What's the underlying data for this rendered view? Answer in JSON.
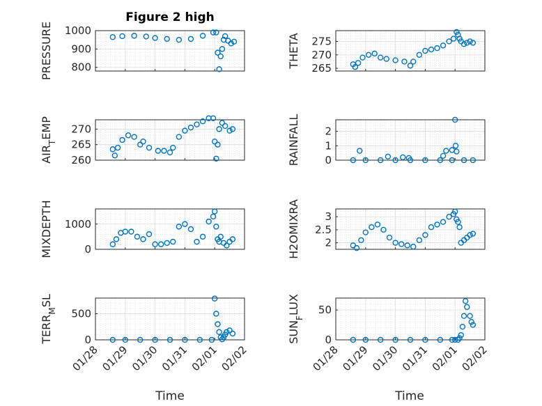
{
  "figure": {
    "title": "Figure 2 high",
    "xlabel": "Time",
    "x_ticks": [
      "01/28",
      "01/29",
      "01/30",
      "01/31",
      "02/01",
      "02/02"
    ],
    "marker_color": "#0072BD"
  },
  "chart_data": [
    {
      "type": "scatter",
      "ylabel": "PRESSURE",
      "ylim": [
        780,
        1000
      ],
      "yticks": [
        800,
        900,
        1000
      ],
      "grid": true,
      "x": [
        0.58,
        0.9,
        1.3,
        1.7,
        2.0,
        2.4,
        2.8,
        3.2,
        3.6,
        3.95,
        4.05,
        4.1,
        4.15,
        4.2,
        4.25,
        4.3,
        4.35,
        4.45,
        4.55,
        4.65
      ],
      "y": [
        965,
        970,
        972,
        968,
        960,
        955,
        950,
        955,
        972,
        990,
        990,
        880,
        790,
        860,
        900,
        950,
        970,
        945,
        930,
        940
      ]
    },
    {
      "type": "scatter",
      "ylabel": "THETA",
      "ylim": [
        264,
        279
      ],
      "yticks": [
        265,
        270,
        275
      ],
      "grid": true,
      "x": [
        0.58,
        0.65,
        0.75,
        0.9,
        1.1,
        1.3,
        1.5,
        1.7,
        2.0,
        2.3,
        2.5,
        2.6,
        2.8,
        3.0,
        3.2,
        3.4,
        3.6,
        3.8,
        3.95,
        4.05,
        4.1,
        4.15,
        4.2,
        4.3,
        4.4,
        4.5,
        4.6
      ],
      "y": [
        266.5,
        265.5,
        267,
        269,
        270,
        270.5,
        269,
        268.5,
        268,
        267.5,
        266,
        267.5,
        270,
        271.5,
        272,
        272.5,
        273.5,
        275,
        276,
        278.5,
        277.5,
        276,
        275,
        274,
        274.5,
        275,
        274.5
      ]
    },
    {
      "type": "scatter",
      "ylabel": "AIR_TEMP",
      "ylim": [
        260,
        273
      ],
      "yticks": [
        260,
        265,
        270
      ],
      "grid": true,
      "x": [
        0.58,
        0.65,
        0.75,
        0.9,
        1.1,
        1.3,
        1.5,
        1.6,
        1.8,
        2.1,
        2.3,
        2.5,
        2.6,
        2.8,
        3.0,
        3.2,
        3.4,
        3.6,
        3.8,
        3.95,
        4.0,
        4.05,
        4.1,
        4.15,
        4.25,
        4.35,
        4.5,
        4.6
      ],
      "y": [
        263.5,
        261.5,
        264,
        266.5,
        268,
        267.5,
        265,
        266,
        264,
        263,
        263,
        262.5,
        264,
        267.5,
        269.5,
        270.5,
        271.5,
        272.5,
        273.5,
        273.5,
        266,
        260.5,
        265,
        270,
        272,
        271,
        269.5,
        270
      ]
    },
    {
      "type": "scatter",
      "ylabel": "RAINFALL",
      "ylim": [
        0,
        2.8
      ],
      "yticks": [
        0,
        1,
        2
      ],
      "grid": true,
      "x": [
        0.58,
        1.0,
        1.5,
        2.0,
        2.5,
        3.0,
        3.5,
        3.9,
        4.0,
        4.02,
        4.05,
        4.3,
        4.6,
        0.8,
        1.75,
        2.25,
        2.45,
        3.6,
        3.7,
        3.9
      ],
      "y": [
        0,
        0,
        0,
        0,
        0,
        0,
        0,
        0,
        2.8,
        1.0,
        0.6,
        0,
        0,
        0.65,
        0.25,
        0.2,
        0.15,
        0.3,
        0.65,
        0.7
      ]
    },
    {
      "type": "scatter",
      "ylabel": "MIXDEPTH",
      "ylim": [
        0,
        1600
      ],
      "yticks": [
        0,
        1000
      ],
      "grid": true,
      "x": [
        0.58,
        0.7,
        0.85,
        1.0,
        1.2,
        1.4,
        1.6,
        1.8,
        2.0,
        2.2,
        2.4,
        2.6,
        2.8,
        3.0,
        3.2,
        3.4,
        3.6,
        3.8,
        3.95,
        4.0,
        4.05,
        4.1,
        4.15,
        4.2,
        4.3,
        4.4,
        4.5,
        4.6
      ],
      "y": [
        200,
        400,
        650,
        700,
        700,
        500,
        400,
        600,
        200,
        200,
        250,
        300,
        900,
        1000,
        800,
        300,
        500,
        1100,
        1300,
        1500,
        900,
        400,
        300,
        500,
        250,
        150,
        300,
        400
      ]
    },
    {
      "type": "scatter",
      "ylabel": "H2OMIXRA",
      "ylim": [
        1.75,
        3.3
      ],
      "yticks": [
        2,
        2.5,
        3
      ],
      "grid": true,
      "x": [
        0.58,
        0.7,
        0.85,
        1.0,
        1.2,
        1.4,
        1.6,
        1.8,
        2.0,
        2.2,
        2.4,
        2.6,
        2.8,
        3.0,
        3.2,
        3.4,
        3.6,
        3.8,
        3.95,
        4.0,
        4.05,
        4.1,
        4.15,
        4.2,
        4.3,
        4.4,
        4.5,
        4.6
      ],
      "y": [
        1.9,
        1.8,
        2.1,
        2.4,
        2.6,
        2.7,
        2.5,
        2.2,
        2.0,
        1.95,
        1.9,
        1.85,
        2.1,
        2.3,
        2.6,
        2.7,
        2.8,
        3.0,
        3.1,
        3.2,
        2.9,
        2.8,
        2.6,
        2.0,
        2.1,
        2.2,
        2.3,
        2.35
      ]
    },
    {
      "type": "scatter",
      "ylabel": "TERR_MSL",
      "ylim": [
        0,
        800
      ],
      "yticks": [
        0,
        500
      ],
      "grid": true,
      "x": [
        0.58,
        1.0,
        1.5,
        2.0,
        2.5,
        3.0,
        3.5,
        3.9,
        4.0,
        4.05,
        4.1,
        4.15,
        4.2,
        4.25,
        4.3,
        4.35,
        4.4,
        4.5,
        4.6
      ],
      "y": [
        0,
        0,
        0,
        0,
        0,
        0,
        0,
        0,
        790,
        500,
        300,
        150,
        50,
        10,
        50,
        100,
        150,
        180,
        120
      ]
    },
    {
      "type": "scatter",
      "ylabel": "SUN_FLUX",
      "ylim": [
        0,
        70
      ],
      "yticks": [
        0,
        50
      ],
      "grid": true,
      "x": [
        0.58,
        1.0,
        1.5,
        2.0,
        2.5,
        3.0,
        3.5,
        3.9,
        4.0,
        4.1,
        4.15,
        4.2,
        4.25,
        4.3,
        4.35,
        4.4,
        4.5,
        4.55,
        4.6
      ],
      "y": [
        0,
        0,
        0,
        0,
        0,
        0,
        0,
        0,
        0,
        0,
        3,
        8,
        22,
        40,
        65,
        55,
        40,
        30,
        25
      ]
    }
  ]
}
